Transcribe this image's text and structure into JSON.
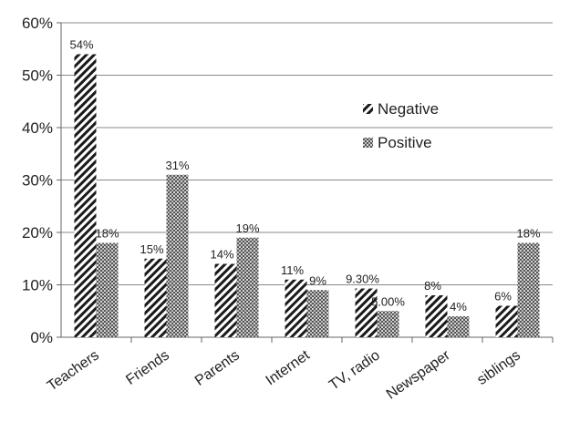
{
  "chart_data": {
    "type": "bar",
    "title": "",
    "xlabel": "",
    "ylabel": "",
    "ylim": [
      0,
      0.6
    ],
    "y_ticks": [
      "0%",
      "10%",
      "20%",
      "30%",
      "40%",
      "50%",
      "60%"
    ],
    "grid": true,
    "legend_position": "center-right",
    "categories": [
      "Teachers",
      "Friends",
      "Parents",
      "Internet",
      "TV, radio",
      "Newspaper",
      "siblings"
    ],
    "series": [
      {
        "name": "Negative",
        "pattern": "diagonal-stripes",
        "values": [
          0.54,
          0.15,
          0.14,
          0.11,
          0.093,
          0.08,
          0.06
        ],
        "labels": [
          "54%",
          "15%",
          "14%",
          "11%",
          "9.30%",
          "8%",
          "6%"
        ]
      },
      {
        "name": "Positive",
        "pattern": "dotted",
        "values": [
          0.18,
          0.31,
          0.19,
          0.09,
          0.05,
          0.04,
          0.18
        ],
        "labels": [
          "18%",
          "31%",
          "19%",
          "9%",
          "5.00%",
          "4%",
          "18%"
        ]
      }
    ]
  }
}
